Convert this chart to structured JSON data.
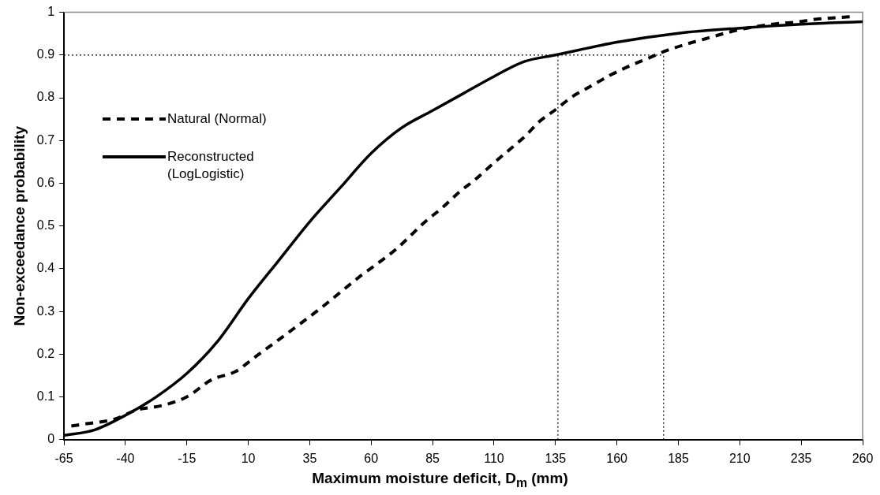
{
  "chart_data": {
    "type": "line",
    "xlabel": "Maximum moisture deficit, D$_{m}$ (mm)",
    "ylabel": "Non-exceedance probability",
    "xlim": [
      -65,
      260
    ],
    "xticks": [
      -65,
      -40,
      -15,
      10,
      35,
      60,
      85,
      110,
      135,
      160,
      185,
      210,
      235,
      260
    ],
    "ylim": [
      0,
      1
    ],
    "yticks": [
      0,
      0.1,
      0.2,
      0.3,
      0.4,
      0.5,
      0.6,
      0.7,
      0.8,
      0.9,
      1
    ],
    "grid": false,
    "legend": "top left",
    "marker": "none",
    "series": [
      {
        "name": "Natural (Normal)",
        "color": "#000000",
        "line_style": "dashed",
        "x": [
          -62,
          -55,
          -45,
          -35,
          -25,
          -15,
          -5,
          5,
          12,
          25,
          40,
          55,
          70,
          82,
          89,
          96,
          102,
          110,
          117,
          123,
          128,
          135,
          142,
          150,
          157,
          165,
          173,
          180,
          188,
          196,
          204,
          211,
          226,
          233,
          240,
          248,
          256
        ],
        "values": [
          0.032,
          0.038,
          0.047,
          0.07,
          0.08,
          0.1,
          0.14,
          0.16,
          0.19,
          0.245,
          0.31,
          0.38,
          0.445,
          0.51,
          0.543,
          0.58,
          0.607,
          0.648,
          0.682,
          0.712,
          0.742,
          0.772,
          0.803,
          0.829,
          0.852,
          0.874,
          0.893,
          0.91,
          0.925,
          0.938,
          0.951,
          0.961,
          0.974,
          0.977,
          0.983,
          0.987,
          0.99
        ]
      },
      {
        "name": "Reconstructed (LogLogistic)",
        "color": "#000000",
        "line_style": "solid",
        "x": [
          -65,
          -52.5,
          -40,
          -27.5,
          -15,
          -2.5,
          10,
          22.5,
          35,
          47.5,
          60,
          72.5,
          85,
          97.5,
          110,
          122.5,
          135,
          160,
          185,
          210,
          235,
          260
        ],
        "values": [
          0.01,
          0.023,
          0.057,
          0.1,
          0.155,
          0.23,
          0.33,
          0.42,
          0.51,
          0.59,
          0.67,
          0.73,
          0.77,
          0.81,
          0.85,
          0.885,
          0.9,
          0.93,
          0.951,
          0.963,
          0.972,
          0.978
        ]
      }
    ],
    "ref_lines": [
      {
        "axis": "y",
        "value": 0.9,
        "color": "#000000",
        "line_style": "dotted"
      },
      {
        "axis": "x",
        "value": 136,
        "color": "#000000",
        "line_style": "dotted"
      },
      {
        "axis": "x",
        "value": 179,
        "color": "#000000",
        "line_style": "dotted"
      }
    ]
  }
}
